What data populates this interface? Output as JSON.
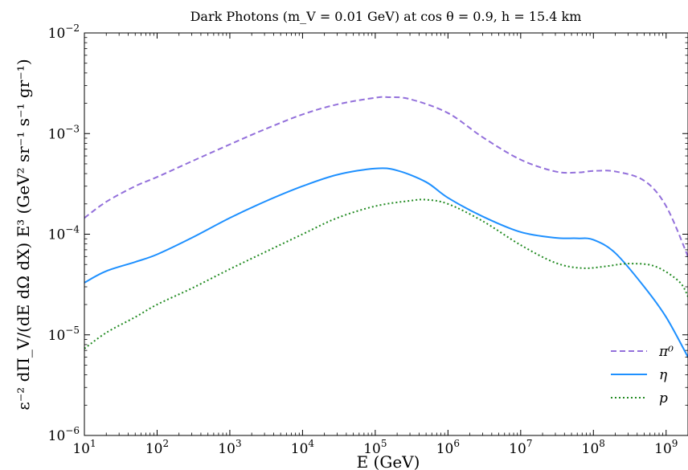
{
  "chart_data": {
    "type": "line",
    "title": "Dark Photons (m_V = 0.01 GeV) at cos θ = 0.9, h = 15.4 km",
    "xlabel": "E (GeV)",
    "ylabel": "ε⁻² dΠ_V/(dE dΩ dX) E³ (GeV² sr⁻¹ s⁻¹ gr⁻¹)",
    "xscale": "log",
    "yscale": "log",
    "xlim": [
      10,
      2000000000.0
    ],
    "ylim": [
      1e-06,
      0.01
    ],
    "x_ticks": [
      {
        "base": "10",
        "exp": "1"
      },
      {
        "base": "10",
        "exp": "2"
      },
      {
        "base": "10",
        "exp": "3"
      },
      {
        "base": "10",
        "exp": "4"
      },
      {
        "base": "10",
        "exp": "5"
      },
      {
        "base": "10",
        "exp": "6"
      },
      {
        "base": "10",
        "exp": "7"
      },
      {
        "base": "10",
        "exp": "8"
      },
      {
        "base": "10",
        "exp": "9"
      }
    ],
    "y_ticks": [
      {
        "base": "10",
        "exp": "−6"
      },
      {
        "base": "10",
        "exp": "−5"
      },
      {
        "base": "10",
        "exp": "−4"
      },
      {
        "base": "10",
        "exp": "−3"
      },
      {
        "base": "10",
        "exp": "−2"
      }
    ],
    "grid": false,
    "legend_position": "lower-right",
    "series": [
      {
        "name": "π⁰",
        "color": "#9370db",
        "style": "dashed",
        "points": [
          [
            10,
            0.000145
          ],
          [
            20,
            0.00021
          ],
          [
            50,
            0.0003
          ],
          [
            100,
            0.00037
          ],
          [
            300,
            0.00053
          ],
          [
            1000,
            0.00078
          ],
          [
            3000,
            0.0011
          ],
          [
            10000,
            0.00155
          ],
          [
            30000,
            0.00195
          ],
          [
            100000,
            0.00227
          ],
          [
            150000,
            0.0023
          ],
          [
            300000,
            0.0022
          ],
          [
            1000000,
            0.0016
          ],
          [
            3000000,
            0.00092
          ],
          [
            10000000,
            0.00055
          ],
          [
            30000000,
            0.00042
          ],
          [
            60000000,
            0.00041
          ],
          [
            100000000,
            0.000425
          ],
          [
            200000000,
            0.00042
          ],
          [
            500000000,
            0.00034
          ],
          [
            1000000000,
            0.00019
          ],
          [
            2000000000,
            6e-05
          ]
        ]
      },
      {
        "name": "η",
        "color": "#1e90ff",
        "style": "solid",
        "points": [
          [
            10,
            3.3e-05
          ],
          [
            20,
            4.3e-05
          ],
          [
            50,
            5.3e-05
          ],
          [
            100,
            6.3e-05
          ],
          [
            300,
            9.2e-05
          ],
          [
            1000,
            0.000145
          ],
          [
            3000,
            0.00021
          ],
          [
            10000,
            0.0003
          ],
          [
            30000,
            0.00039
          ],
          [
            100000,
            0.00045
          ],
          [
            200000,
            0.00043
          ],
          [
            500000,
            0.00033
          ],
          [
            1000000,
            0.00023
          ],
          [
            3000000,
            0.00015
          ],
          [
            10000000,
            0.000105
          ],
          [
            30000000,
            9.2e-05
          ],
          [
            60000000,
            9.1e-05
          ],
          [
            100000000,
            8.8e-05
          ],
          [
            200000000,
            6.5e-05
          ],
          [
            500000000,
            3e-05
          ],
          [
            1000000000,
            1.5e-05
          ],
          [
            2000000000,
            6e-06
          ]
        ]
      },
      {
        "name": "p",
        "color": "#228b22",
        "style": "dotted",
        "points": [
          [
            10,
            7.3e-06
          ],
          [
            20,
            1.05e-05
          ],
          [
            50,
            1.5e-05
          ],
          [
            100,
            2e-05
          ],
          [
            300,
            2.9e-05
          ],
          [
            1000,
            4.5e-05
          ],
          [
            3000,
            6.6e-05
          ],
          [
            10000,
            0.0001
          ],
          [
            30000,
            0.000145
          ],
          [
            100000,
            0.00019
          ],
          [
            300000,
            0.000215
          ],
          [
            500000,
            0.00022
          ],
          [
            1000000,
            0.0002
          ],
          [
            3000000,
            0.000135
          ],
          [
            10000000,
            7.8e-05
          ],
          [
            30000000,
            5.2e-05
          ],
          [
            70000000,
            4.6e-05
          ],
          [
            150000000,
            4.8e-05
          ],
          [
            300000000,
            5.1e-05
          ],
          [
            700000000,
            4.8e-05
          ],
          [
            1500000000,
            3.4e-05
          ],
          [
            2000000000,
            2.4e-05
          ]
        ]
      }
    ]
  }
}
